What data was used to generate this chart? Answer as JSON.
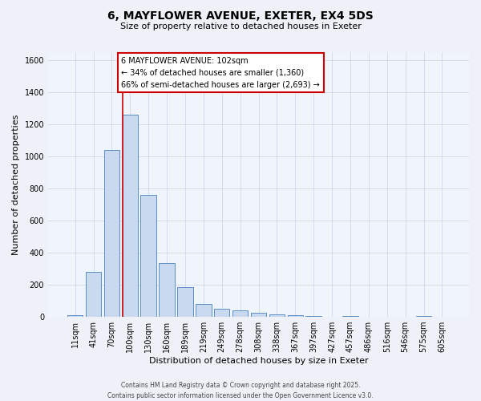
{
  "title_line1": "6, MAYFLOWER AVENUE, EXETER, EX4 5DS",
  "title_line2": "Size of property relative to detached houses in Exeter",
  "xlabel": "Distribution of detached houses by size in Exeter",
  "ylabel": "Number of detached properties",
  "bar_labels": [
    "11sqm",
    "41sqm",
    "70sqm",
    "100sqm",
    "130sqm",
    "160sqm",
    "189sqm",
    "219sqm",
    "249sqm",
    "278sqm",
    "308sqm",
    "338sqm",
    "367sqm",
    "397sqm",
    "427sqm",
    "457sqm",
    "486sqm",
    "516sqm",
    "546sqm",
    "575sqm",
    "605sqm"
  ],
  "bar_values": [
    10,
    280,
    1040,
    1260,
    760,
    335,
    185,
    80,
    50,
    38,
    25,
    15,
    8,
    5,
    0,
    3,
    0,
    0,
    0,
    5,
    0
  ],
  "bar_color": "#c9d9f0",
  "bar_edge_color": "#5b8ec4",
  "ylim": [
    0,
    1650
  ],
  "yticks": [
    0,
    200,
    400,
    600,
    800,
    1000,
    1200,
    1400,
    1600
  ],
  "red_line_index": 3,
  "annotation_title": "6 MAYFLOWER AVENUE: 102sqm",
  "annotation_line1": "← 34% of detached houses are smaller (1,360)",
  "annotation_line2": "66% of semi-detached houses are larger (2,693) →",
  "annotation_box_color": "#ffffff",
  "annotation_box_edge_color": "#cc0000",
  "vline_color": "#cc0000",
  "footer_line1": "Contains HM Land Registry data © Crown copyright and database right 2025.",
  "footer_line2": "Contains public sector information licensed under the Open Government Licence v3.0.",
  "bg_color": "#eef2f8",
  "plot_bg_color": "#f0f4fb",
  "grid_color": "#d0d8e8",
  "title_fontsize": 10,
  "subtitle_fontsize": 8,
  "xlabel_fontsize": 8,
  "ylabel_fontsize": 8,
  "tick_fontsize": 7,
  "annotation_fontsize": 7,
  "footer_fontsize": 5.5
}
